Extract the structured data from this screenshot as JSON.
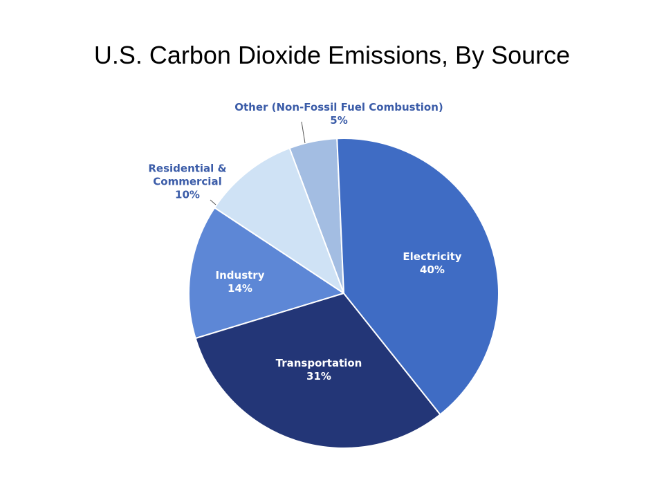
{
  "chart_data": {
    "type": "pie",
    "title": "U.S. Carbon Dioxide Emissions, By Source",
    "categories": [
      "Electricity",
      "Transportation",
      "Industry",
      "Residential & Commercial",
      "Other (Non-Fossil Fuel Combustion)"
    ],
    "values": [
      40,
      31,
      14,
      10,
      5
    ],
    "value_labels": [
      "40%",
      "31%",
      "14%",
      "10%",
      "5%"
    ],
    "colors": [
      "#3f6cc4",
      "#233677",
      "#5d87d6",
      "#cfe2f5",
      "#a3bde2"
    ]
  }
}
